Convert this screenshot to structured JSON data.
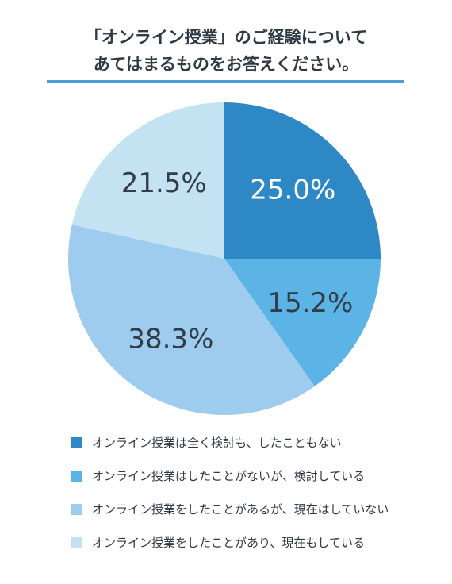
{
  "title_lines": [
    "「オンライン授業」のご経験について",
    "あてはまるものをお答えください。"
  ],
  "chart_data": {
    "type": "pie",
    "start_angle_deg": 0,
    "direction": "clockwise",
    "slices": [
      {
        "label": "オンライン授業は全く検討も、したこともない",
        "value": 25.0,
        "display": "25.0%",
        "color": "#2d88c5",
        "text_color": "#ffffff"
      },
      {
        "label": "オンライン授業はしたことがないが、検討している",
        "value": 15.2,
        "display": "15.2%",
        "color": "#5bb3e6",
        "text_color": "#333d47"
      },
      {
        "label": "オンライン授業をしたことがあるが、現在はしていない",
        "value": 38.3,
        "display": "38.3%",
        "color": "#9dccee",
        "text_color": "#333d47"
      },
      {
        "label": "オンライン授業をしたことがあり、現在もしている",
        "value": 21.5,
        "display": "21.5%",
        "color": "#c3e2f2",
        "text_color": "#333d47"
      }
    ]
  }
}
